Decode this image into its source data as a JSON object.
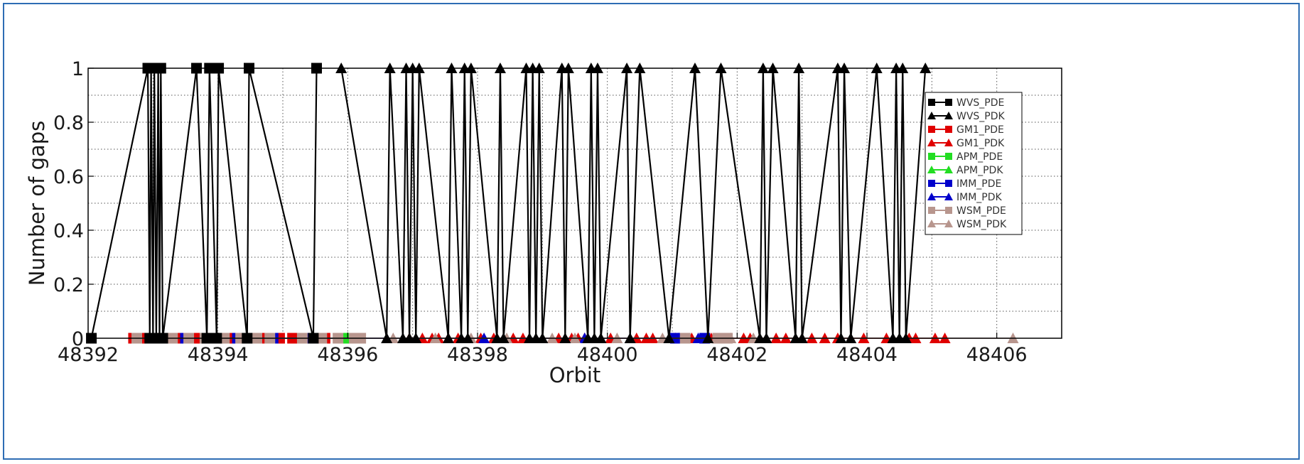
{
  "chart_data": {
    "type": "line",
    "title": "",
    "xlabel": "Orbit",
    "ylabel": "Number of gaps",
    "xlim": [
      48392,
      48407
    ],
    "ylim": [
      0,
      1
    ],
    "xticks": [
      48392,
      48394,
      48396,
      48398,
      48400,
      48402,
      48404,
      48406
    ],
    "yticks": [
      "0",
      "0.2",
      "0.4",
      "0.6",
      "0.8",
      "1"
    ],
    "grid": true,
    "legend_position": "top-right",
    "series": [
      {
        "name": "WVS_PDE",
        "color": "#000000",
        "marker": "square",
        "x": [
          48392.05,
          48392.92,
          48392.95,
          48392.97,
          48393.0,
          48393.02,
          48393.05,
          48393.08,
          48393.1,
          48393.12,
          48393.15,
          48393.67,
          48393.83,
          48393.87,
          48393.98,
          48394.01,
          48394.45,
          48394.48,
          48395.47,
          48395.52
        ],
        "y": [
          0,
          1,
          0,
          1,
          0,
          1,
          0,
          1,
          0,
          1,
          0,
          1,
          0,
          1,
          0,
          1,
          0,
          1,
          0,
          1
        ]
      },
      {
        "name": "WVS_PDK",
        "color": "#000000",
        "marker": "triangle",
        "x": [
          48395.9,
          48396.6,
          48396.65,
          48396.85,
          48396.9,
          48396.95,
          48397.0,
          48397.05,
          48397.1,
          48397.55,
          48397.6,
          48397.75,
          48397.8,
          48397.85,
          48397.9,
          48398.3,
          48398.35,
          48398.4,
          48398.75,
          48398.8,
          48398.85,
          48398.9,
          48398.95,
          48399.0,
          48399.3,
          48399.35,
          48399.4,
          48399.7,
          48399.75,
          48399.8,
          48399.85,
          48399.9,
          48400.3,
          48400.35,
          48400.5,
          48400.95,
          48401.35,
          48401.55,
          48401.75,
          48402.35,
          48402.4,
          48402.45,
          48402.55,
          48402.9,
          48402.95,
          48403.0,
          48403.55,
          48403.6,
          48403.65,
          48403.75,
          48404.15,
          48404.4,
          48404.45,
          48404.5,
          48404.55,
          48404.6,
          48404.9
        ],
        "y": [
          1,
          0,
          1,
          0,
          1,
          0,
          1,
          0,
          1,
          0,
          1,
          0,
          1,
          0,
          1,
          0,
          1,
          0,
          1,
          0,
          1,
          0,
          1,
          0,
          1,
          0,
          1,
          0,
          1,
          0,
          1,
          0,
          1,
          0,
          1,
          0,
          1,
          0,
          1,
          0,
          1,
          0,
          1,
          0,
          1,
          0,
          1,
          0,
          1,
          0,
          1,
          0,
          1,
          0,
          1,
          0,
          1
        ]
      },
      {
        "name": "GM1_PDE",
        "color": "#e00000",
        "marker": "square",
        "x": [
          48392.7,
          48392.85,
          48393.2,
          48393.45,
          48393.7,
          48393.95,
          48394.25,
          48394.65,
          48394.95,
          48395.15,
          48395.65
        ],
        "y": [
          0,
          0,
          0,
          0,
          0,
          0,
          0,
          0,
          0,
          0,
          0
        ]
      },
      {
        "name": "GM1_PDK",
        "color": "#e00000",
        "marker": "triangle",
        "x": [
          48396.95,
          48397.15,
          48397.3,
          48397.4,
          48397.55,
          48397.7,
          48398.05,
          48398.25,
          48398.55,
          48398.7,
          48399.25,
          48399.45,
          48399.55,
          48399.65,
          48400.05,
          48400.45,
          48400.6,
          48400.7,
          48401.05,
          48401.3,
          48401.6,
          48402.1,
          48402.2,
          48402.6,
          48402.75,
          48403.15,
          48403.35,
          48403.55,
          48403.95,
          48404.3,
          48404.65,
          48404.75,
          48405.05,
          48405.2
        ],
        "y": [
          0,
          0,
          0,
          0,
          0,
          0,
          0,
          0,
          0,
          0,
          0,
          0,
          0,
          0,
          0,
          0,
          0,
          0,
          0,
          0,
          0,
          0,
          0,
          0,
          0,
          0,
          0,
          0,
          0,
          0,
          0,
          0,
          0,
          0
        ]
      },
      {
        "name": "APM_PDE",
        "color": "#22dd22",
        "marker": "square",
        "x": [
          48394.55,
          48396.0
        ],
        "y": [
          0,
          0
        ]
      },
      {
        "name": "APM_PDK",
        "color": "#22dd22",
        "marker": "triangle",
        "x": [],
        "y": []
      },
      {
        "name": "IMM_PDE",
        "color": "#0000cc",
        "marker": "square",
        "x": [
          48393.5,
          48394.3,
          48394.85,
          48395.4,
          48401.05,
          48401.15,
          48401.5
        ],
        "y": [
          0,
          0,
          0,
          0,
          0,
          0,
          0
        ]
      },
      {
        "name": "IMM_PDK",
        "color": "#0000cc",
        "marker": "triangle",
        "x": [
          48398.1,
          48399.65,
          48401.1,
          48401.4
        ],
        "y": [
          0,
          0,
          0,
          0
        ]
      },
      {
        "name": "WSM_PDE",
        "color": "#b8968e",
        "marker": "square",
        "x": [
          48392.75,
          48393.05,
          48393.3,
          48393.55,
          48393.8,
          48394.1,
          48394.35,
          48394.6,
          48394.8,
          48395.3,
          48395.6,
          48395.85,
          48396.1,
          48396.2,
          48401.2,
          48401.7,
          48401.85
        ],
        "y": [
          0,
          0,
          0,
          0,
          0,
          0,
          0,
          0,
          0,
          0,
          0,
          0,
          0,
          0,
          0,
          0,
          0
        ]
      },
      {
        "name": "WSM_PDK",
        "color": "#b8968e",
        "marker": "triangle",
        "x": [
          48396.7,
          48397.35,
          48397.9,
          48398.45,
          48399.15,
          48399.5,
          48400.15,
          48400.85,
          48401.9,
          48402.25,
          48406.25
        ],
        "y": [
          0,
          0,
          0,
          0,
          0,
          0,
          0,
          0,
          0,
          0,
          0
        ]
      }
    ]
  }
}
